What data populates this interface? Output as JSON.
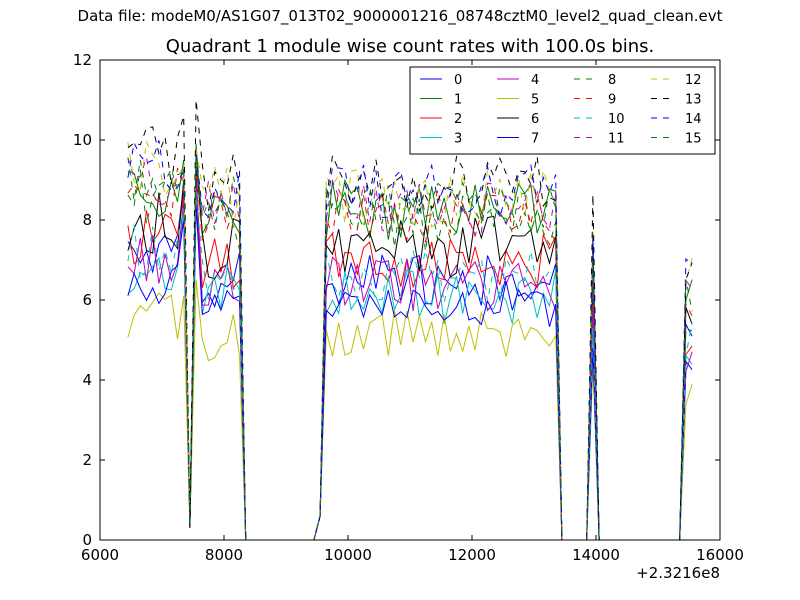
{
  "header": {
    "data_file": "Data file: modeM0/AS1G07_013T02_9000001216_08748cztM0_level2_quad_clean.evt"
  },
  "chart_data": {
    "type": "line",
    "title": "Quadrant 1 module wise count rates with 100.0s bins.",
    "xlabel": "",
    "ylabel": "",
    "x_offset_label": "+2.3216e8",
    "xlim": [
      6000,
      16000
    ],
    "ylim": [
      0,
      12
    ],
    "x_ticks": [
      6000,
      8000,
      10000,
      12000,
      14000,
      16000
    ],
    "x_tick_labels": [
      "6000",
      "8000",
      "10000",
      "12000",
      "14000",
      "16000"
    ],
    "y_ticks": [
      0,
      2,
      4,
      6,
      8,
      10,
      12
    ],
    "y_tick_labels": [
      "0",
      "2",
      "4",
      "6",
      "8",
      "10",
      "12"
    ],
    "grid": false,
    "legend": "top-right",
    "legend_columns": 4,
    "segments": [
      {
        "start": 6450,
        "end": 7350
      },
      {
        "start": 7550,
        "end": 8250
      },
      {
        "start": 9600,
        "end": 13400
      },
      {
        "start": 13900,
        "end": 14000
      },
      {
        "start": 15450,
        "end": 15550
      }
    ],
    "x_breakpoints": [
      6450,
      7350,
      7450,
      7550,
      8250,
      8350,
      9450,
      9550,
      9600,
      13400,
      13500,
      13600,
      13700,
      13800,
      13900,
      14000,
      14100,
      15350,
      15450,
      15550
    ],
    "series": [
      {
        "name": "0",
        "color": "#0000ff",
        "dash": "solid",
        "level": 6.5,
        "amp": 0.35,
        "peak": 9.2
      },
      {
        "name": "1",
        "color": "#008000",
        "dash": "solid",
        "level": 8.2,
        "amp": 0.4,
        "peak": 9.9
      },
      {
        "name": "2",
        "color": "#ff0000",
        "dash": "solid",
        "level": 7.0,
        "amp": 0.35,
        "peak": 9.0
      },
      {
        "name": "3",
        "color": "#00bfbf",
        "dash": "solid",
        "level": 6.1,
        "amp": 0.35,
        "peak": 8.6
      },
      {
        "name": "4",
        "color": "#bf00bf",
        "dash": "solid",
        "level": 6.4,
        "amp": 0.35,
        "peak": 8.9
      },
      {
        "name": "5",
        "color": "#bfbf00",
        "dash": "solid",
        "level": 5.1,
        "amp": 0.35,
        "peak": 6.5
      },
      {
        "name": "6",
        "color": "#000000",
        "dash": "solid",
        "level": 7.3,
        "amp": 0.4,
        "peak": 9.4
      },
      {
        "name": "7",
        "color": "#0000ff",
        "dash": "solid",
        "level": 5.9,
        "amp": 0.3,
        "peak": 8.4
      },
      {
        "name": "8",
        "color": "#008000",
        "dash": "dashed",
        "level": 8.0,
        "amp": 0.4,
        "peak": 9.6
      },
      {
        "name": "9",
        "color": "#ff0000",
        "dash": "dashed",
        "level": 8.1,
        "amp": 0.35,
        "peak": 9.3
      },
      {
        "name": "10",
        "color": "#00bfbf",
        "dash": "dashed",
        "level": 6.6,
        "amp": 0.35,
        "peak": 8.7
      },
      {
        "name": "11",
        "color": "#bf00bf",
        "dash": "dashed",
        "level": 8.3,
        "amp": 0.35,
        "peak": 9.5
      },
      {
        "name": "12",
        "color": "#bfbf00",
        "dash": "dashed",
        "level": 8.6,
        "amp": 0.4,
        "peak": 9.8
      },
      {
        "name": "13",
        "color": "#000000",
        "dash": "dashed",
        "level": 9.0,
        "amp": 0.4,
        "peak": 11.0
      },
      {
        "name": "14",
        "color": "#0000ff",
        "dash": "dashed",
        "level": 8.7,
        "amp": 0.35,
        "peak": 9.7
      },
      {
        "name": "15",
        "color": "#008000",
        "dash": "dashed",
        "level": 8.4,
        "amp": 0.35,
        "peak": 9.6
      }
    ]
  }
}
